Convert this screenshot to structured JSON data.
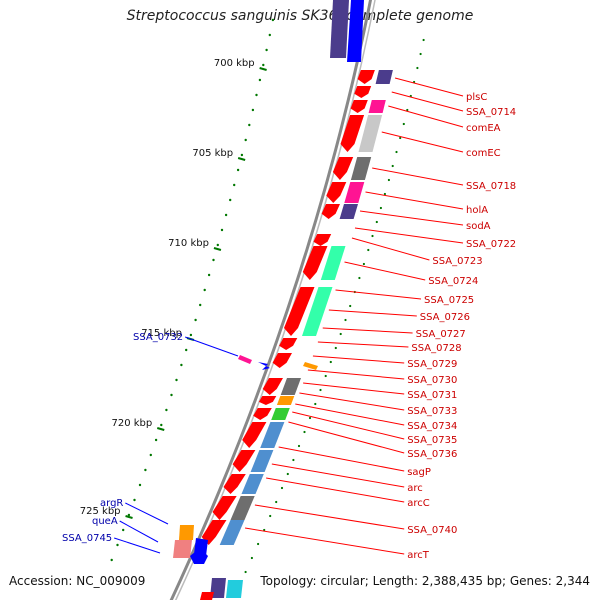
{
  "title": "Streptococcus sanguinis SK36, complete genome",
  "accession": "Accession: NC_009009",
  "topology": "Topology: circular; Length: 2,388,435 bp; Genes: 2,344",
  "ruler": {
    "color": "#007700",
    "ticks": [
      {
        "label": "700 kbp"
      },
      {
        "label": "705 kbp"
      },
      {
        "label": "710 kbp"
      },
      {
        "label": "715 kbp"
      },
      {
        "label": "720 kbp"
      },
      {
        "label": "725 kbp"
      }
    ]
  },
  "colors": {
    "forward": "#ff0000",
    "reverse": "#0000ff",
    "forward_label": "#cc0000",
    "reverse_label": "#0000aa",
    "cog_gray": "#c8c8c8",
    "cog_dark": "#6e6e6e",
    "cog_magenta": "#ff1493",
    "cog_navy": "#4b3c8c",
    "cog_aqua": "#33ffaa",
    "cog_steel": "#4f8fcf",
    "cog_orange": "#ff9900",
    "cog_green": "#33cc33",
    "cog_pink": "#f08080"
  },
  "labels_forward": [
    "plsC",
    "SSA_0714",
    "comEA",
    "comEC",
    "SSA_0718",
    "holA",
    "sodA",
    "SSA_0722",
    "SSA_0723",
    "SSA_0724",
    "SSA_0725",
    "SSA_0726",
    "SSA_0727",
    "SSA_0728",
    "SSA_0729",
    "SSA_0730",
    "SSA_0731",
    "SSA_0733",
    "SSA_0734",
    "SSA_0735",
    "SSA_0736",
    "sagP",
    "arc",
    "arcC",
    "SSA_0740",
    "arcT"
  ],
  "labels_reverse": [
    "SSA_0732",
    "argR",
    "queA",
    "SSA_0745"
  ]
}
